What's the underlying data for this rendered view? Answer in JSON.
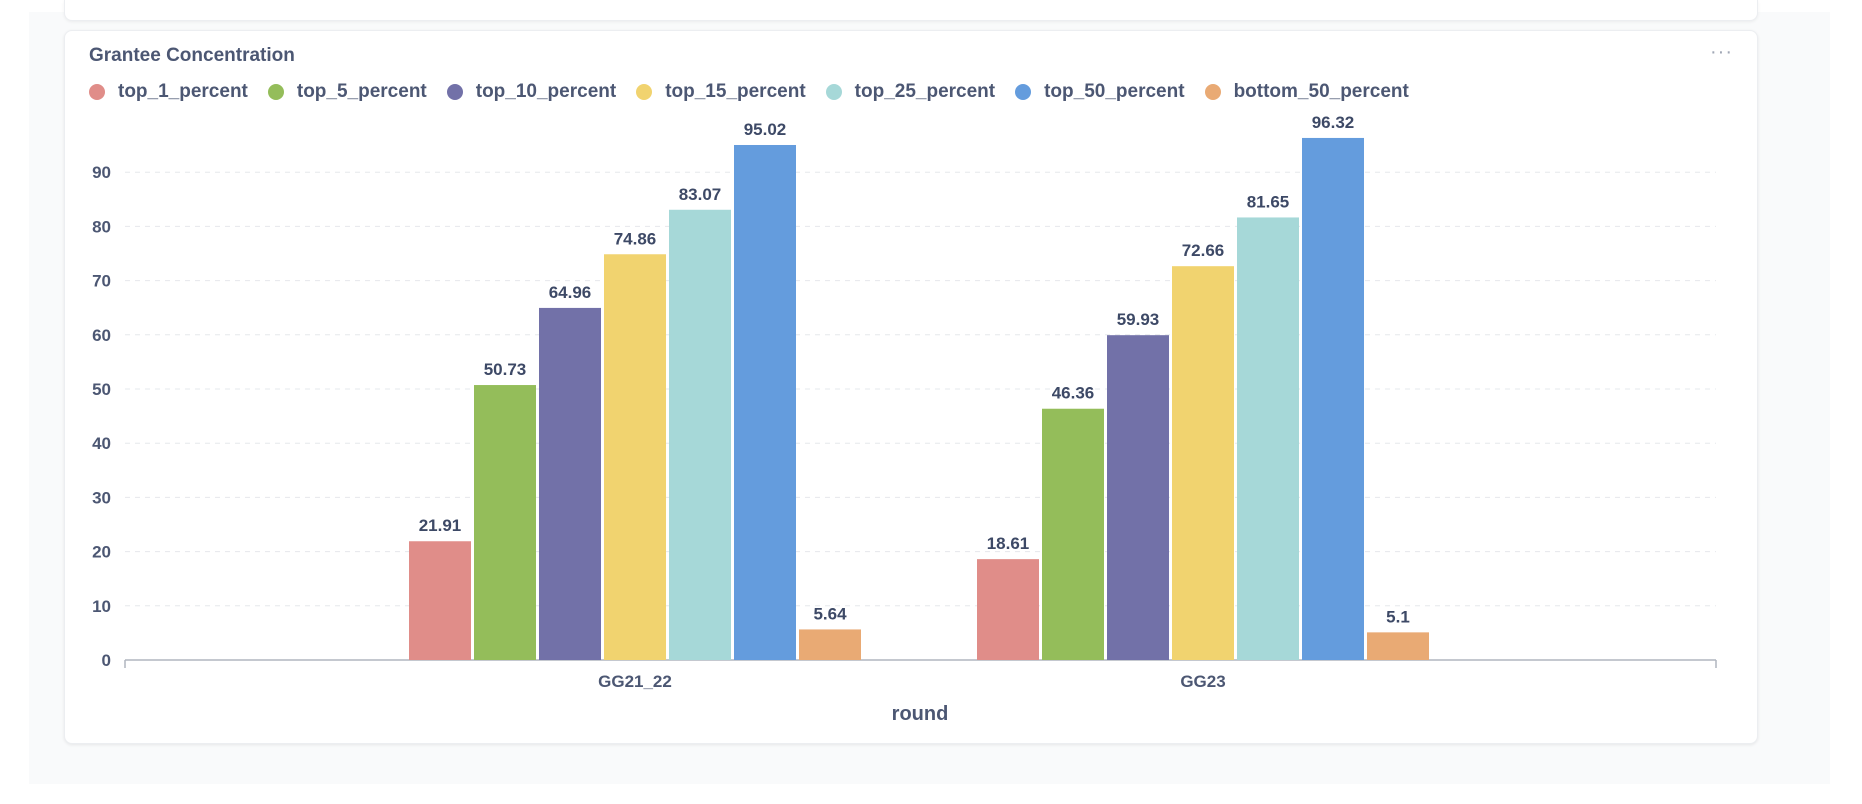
{
  "card": {
    "title": "Grantee Concentration",
    "more_label": "···"
  },
  "chart_data": {
    "type": "bar",
    "title": "Grantee Concentration",
    "xlabel": "round",
    "ylabel": "",
    "categories": [
      "GG21_22",
      "GG23"
    ],
    "ylim": [
      0,
      97
    ],
    "yticks": [
      0,
      10,
      20,
      30,
      40,
      50,
      60,
      70,
      80,
      90
    ],
    "grid": true,
    "legend_position": "top-left",
    "series": [
      {
        "name": "top_1_percent",
        "color": "#e08d89",
        "values": [
          21.91,
          18.61
        ],
        "labels": [
          "21.91",
          "18.61"
        ]
      },
      {
        "name": "top_5_percent",
        "color": "#94bd5a",
        "values": [
          50.73,
          46.36
        ],
        "labels": [
          "50.73",
          "46.36"
        ]
      },
      {
        "name": "top_10_percent",
        "color": "#7271a8",
        "values": [
          64.96,
          59.93
        ],
        "labels": [
          "64.96",
          "59.93"
        ]
      },
      {
        "name": "top_15_percent",
        "color": "#f1d36f",
        "values": [
          74.86,
          72.66
        ],
        "labels": [
          "74.86",
          "72.66"
        ]
      },
      {
        "name": "top_25_percent",
        "color": "#a6d8d8",
        "values": [
          83.07,
          81.65
        ],
        "labels": [
          "83.07",
          "81.65"
        ]
      },
      {
        "name": "top_50_percent",
        "color": "#649cdd",
        "values": [
          95.02,
          96.32
        ],
        "labels": [
          "95.02",
          "96.32"
        ]
      },
      {
        "name": "bottom_50_percent",
        "color": "#e9aa74",
        "values": [
          5.64,
          5.1
        ],
        "labels": [
          "5.64",
          "5.1"
        ]
      }
    ]
  }
}
